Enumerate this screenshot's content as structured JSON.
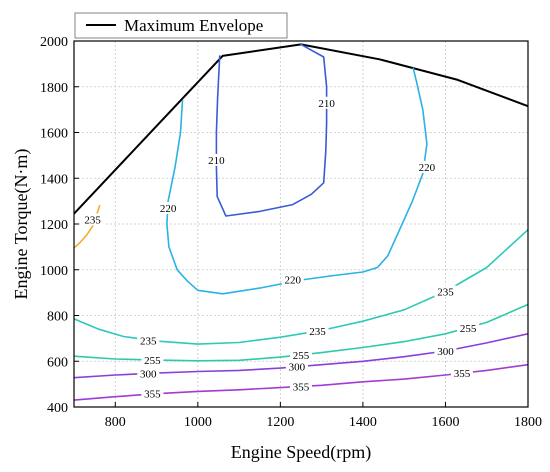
{
  "chart_data": {
    "type": "line",
    "xlabel": "Engine Speed(rpm)",
    "ylabel": "Engine Torque(N·m)",
    "xlim": [
      700,
      1800
    ],
    "ylim": [
      400,
      2000
    ],
    "xticks": [
      800,
      1000,
      1200,
      1400,
      1600,
      1800
    ],
    "yticks": [
      400,
      600,
      800,
      1000,
      1200,
      1400,
      1600,
      1800,
      2000
    ],
    "grid": true,
    "legend": {
      "placement": "top-left",
      "entries": [
        "Maximum Envelope"
      ]
    },
    "series": [
      {
        "name": "Maximum Envelope",
        "kind": "envelope",
        "color": "#000000",
        "x": [
          700,
          1060,
          1250,
          1440,
          1630,
          1800
        ],
        "y": [
          1245,
          1935,
          1985,
          1920,
          1830,
          1715
        ]
      },
      {
        "level": "210",
        "kind": "contour",
        "color": "#3a5bd9",
        "x": [
          1053,
          1048,
          1045,
          1045,
          1047,
          1068,
          1150,
          1230,
          1275,
          1305,
          1310,
          1312,
          1312,
          1305,
          1250
        ],
        "y": [
          1935,
          1750,
          1600,
          1450,
          1320,
          1235,
          1255,
          1285,
          1330,
          1380,
          1520,
          1640,
          1800,
          1930,
          1985
        ],
        "label_positions": [
          [
            1045,
            1480
          ],
          [
            1312,
            1730
          ]
        ]
      },
      {
        "level": "220",
        "kind": "contour",
        "color": "#2ab2e6",
        "x": [
          963,
          958,
          945,
          928,
          925,
          930,
          950,
          975,
          1000,
          1060,
          1150,
          1250,
          1330,
          1400,
          1435,
          1460,
          1490,
          1520,
          1545,
          1555,
          1545,
          1530,
          1522
        ],
        "y": [
          1740,
          1600,
          1450,
          1300,
          1200,
          1100,
          1000,
          950,
          910,
          895,
          920,
          955,
          975,
          990,
          1010,
          1060,
          1180,
          1300,
          1420,
          1550,
          1700,
          1820,
          1880
        ],
        "label_positions": [
          [
            928,
            1270
          ],
          [
            1555,
            1450
          ],
          [
            1230,
            957
          ]
        ]
      },
      {
        "level": "235",
        "kind": "contour",
        "color": "#2ec9b9",
        "x": [
          700,
          760,
          820,
          900,
          1000,
          1100,
          1200,
          1300,
          1400,
          1500,
          1600,
          1700,
          1800
        ],
        "y": [
          785,
          740,
          708,
          688,
          675,
          682,
          705,
          735,
          775,
          825,
          905,
          1010,
          1175
        ],
        "label_positions": [
          [
            880,
            690
          ],
          [
            1290,
            732
          ],
          [
            1600,
            905
          ]
        ]
      },
      {
        "level": "235",
        "kind": "contour",
        "color": "#f0ad2c",
        "x": [
          700,
          715,
          730,
          745,
          755,
          762
        ],
        "y": [
          1095,
          1120,
          1150,
          1190,
          1240,
          1280
        ],
        "label_positions": [
          [
            745,
            1220
          ]
        ]
      },
      {
        "level": "255",
        "kind": "contour",
        "color": "#2ec9a8",
        "x": [
          700,
          800,
          900,
          1000,
          1100,
          1200,
          1300,
          1400,
          1500,
          1600,
          1700,
          1800
        ],
        "y": [
          622,
          610,
          605,
          602,
          604,
          618,
          638,
          660,
          686,
          720,
          770,
          848
        ],
        "label_positions": [
          [
            890,
            605
          ],
          [
            1250,
            628
          ],
          [
            1655,
            745
          ]
        ]
      },
      {
        "level": "300",
        "kind": "contour",
        "color": "#8a3fd8",
        "x": [
          700,
          800,
          900,
          1000,
          1100,
          1200,
          1300,
          1400,
          1500,
          1600,
          1700,
          1800
        ],
        "y": [
          528,
          540,
          548,
          555,
          560,
          570,
          585,
          600,
          620,
          645,
          680,
          720
        ],
        "label_positions": [
          [
            880,
            546
          ],
          [
            1240,
            578
          ],
          [
            1600,
            645
          ]
        ]
      },
      {
        "level": "355",
        "kind": "contour",
        "color": "#a23bd6",
        "x": [
          700,
          800,
          900,
          1000,
          1100,
          1200,
          1300,
          1400,
          1500,
          1600,
          1700,
          1800
        ],
        "y": [
          430,
          445,
          458,
          468,
          475,
          485,
          495,
          510,
          522,
          540,
          560,
          585
        ],
        "label_positions": [
          [
            890,
            458
          ],
          [
            1250,
            490
          ],
          [
            1640,
            548
          ]
        ]
      }
    ]
  }
}
